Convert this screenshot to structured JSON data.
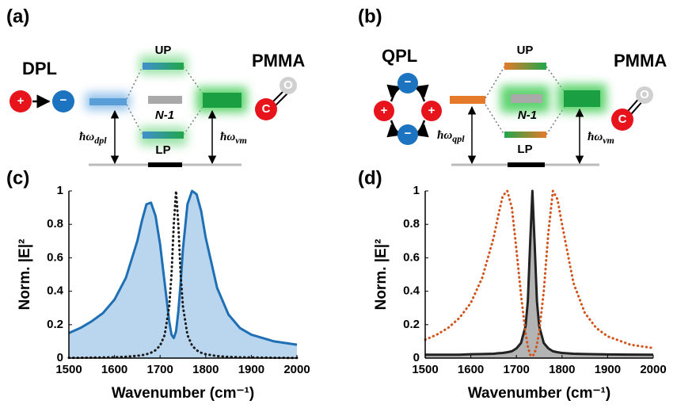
{
  "panels": {
    "a": {
      "label": "(a)",
      "source": "DPL",
      "molecule": "PMMA",
      "upper": "UP",
      "dark": "N-1",
      "lower": "LP",
      "source_energy": {
        "base": "ħω",
        "sub": "dpl"
      },
      "vib_energy": {
        "base": "ħω",
        "sub": "vm"
      }
    },
    "b": {
      "label": "(b)",
      "source": "QPL",
      "molecule": "PMMA",
      "upper": "UP",
      "dark": "N-1",
      "lower": "LP",
      "source_energy": {
        "base": "ħω",
        "sub": "qpl"
      },
      "vib_energy": {
        "base": "ħω",
        "sub": "vm"
      }
    }
  },
  "atoms": {
    "plus": "+",
    "minus": "−",
    "carbon": "C",
    "oxygen": "O"
  },
  "chart_data": [
    {
      "type": "line",
      "panel_label": "(c)",
      "xlabel": "Wavenumber (cm⁻¹)",
      "ylabel": "Norm. |E|²",
      "x": [
        1500,
        1525,
        1550,
        1575,
        1600,
        1625,
        1650,
        1660,
        1670,
        1680,
        1690,
        1700,
        1710,
        1720,
        1725,
        1730,
        1735,
        1740,
        1745,
        1750,
        1760,
        1770,
        1780,
        1790,
        1800,
        1825,
        1850,
        1875,
        1900,
        1950,
        2000
      ],
      "series": [
        {
          "color": "#1f6fb4",
          "fill": "#b9d6ee",
          "style": "solid",
          "values": [
            0.15,
            0.18,
            0.22,
            0.27,
            0.35,
            0.48,
            0.7,
            0.82,
            0.92,
            0.93,
            0.85,
            0.68,
            0.45,
            0.22,
            0.14,
            0.12,
            0.16,
            0.28,
            0.45,
            0.65,
            0.92,
            1.0,
            0.98,
            0.88,
            0.72,
            0.42,
            0.26,
            0.18,
            0.14,
            0.1,
            0.08
          ]
        },
        {
          "color": "#1a1a1a",
          "style": "dotted",
          "values": [
            0.002,
            0.002,
            0.003,
            0.004,
            0.005,
            0.008,
            0.014,
            0.017,
            0.023,
            0.032,
            0.047,
            0.075,
            0.138,
            0.31,
            0.5,
            0.8,
            1.0,
            0.8,
            0.5,
            0.31,
            0.138,
            0.075,
            0.047,
            0.032,
            0.023,
            0.012,
            0.007,
            0.005,
            0.004,
            0.002,
            0.001
          ]
        }
      ],
      "xlim": [
        1500,
        2000
      ],
      "xticks": [
        1500,
        1600,
        1700,
        1800,
        1900,
        2000
      ],
      "ylim": [
        0,
        1
      ],
      "yticks": [
        0,
        0.2,
        0.4,
        0.6,
        0.8,
        1
      ]
    },
    {
      "type": "line",
      "panel_label": "(d)",
      "xlabel": "Wavenumber (cm⁻¹)",
      "ylabel": "Norm. |E|²",
      "x": [
        1500,
        1525,
        1550,
        1575,
        1600,
        1625,
        1650,
        1660,
        1670,
        1680,
        1690,
        1700,
        1710,
        1720,
        1725,
        1730,
        1735,
        1740,
        1745,
        1750,
        1760,
        1770,
        1780,
        1790,
        1800,
        1825,
        1850,
        1875,
        1900,
        1950,
        2000
      ],
      "series": [
        {
          "color": "#222222",
          "fill": "#b4b4b4",
          "style": "solid",
          "values": [
            0.02,
            0.02,
            0.02,
            0.02,
            0.023,
            0.024,
            0.026,
            0.029,
            0.031,
            0.035,
            0.041,
            0.058,
            0.09,
            0.19,
            0.34,
            0.68,
            1.0,
            0.68,
            0.34,
            0.19,
            0.09,
            0.058,
            0.041,
            0.035,
            0.031,
            0.026,
            0.024,
            0.023,
            0.022,
            0.021,
            0.02
          ]
        },
        {
          "color": "#d2541c",
          "style": "dotted",
          "values": [
            0.11,
            0.14,
            0.18,
            0.24,
            0.33,
            0.48,
            0.72,
            0.85,
            0.97,
            1.0,
            0.9,
            0.65,
            0.38,
            0.15,
            0.07,
            0.02,
            0.01,
            0.03,
            0.08,
            0.16,
            0.4,
            0.75,
            1.0,
            0.95,
            0.8,
            0.45,
            0.27,
            0.18,
            0.13,
            0.08,
            0.06
          ]
        }
      ],
      "xlim": [
        1500,
        2000
      ],
      "xticks": [
        1500,
        1600,
        1700,
        1800,
        1900,
        2000
      ],
      "ylim": [
        0,
        1
      ],
      "yticks": [
        0,
        0.2,
        0.4,
        0.6,
        0.8,
        1
      ]
    }
  ]
}
